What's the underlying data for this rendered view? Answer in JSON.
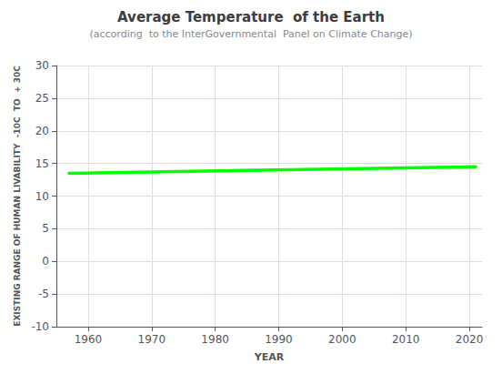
{
  "chart_data": {
    "type": "line",
    "title": "Average Temperature  of the Earth",
    "subtitle": "(according  to the InterGovernmental  Panel on Climate Change)",
    "xlabel": "YEAR",
    "ylabel": "EXISTING RANGE OF HUMAN LIVABILITY  -10C  TO  + 30C",
    "x": [
      1957,
      2021
    ],
    "values": [
      13.5,
      14.5
    ],
    "color": "#00ff00",
    "xlim": [
      1955,
      2022
    ],
    "xticks": [
      1960,
      1970,
      1980,
      1990,
      2000,
      2010,
      2020
    ],
    "ylim": [
      -10,
      30
    ],
    "yticks": [
      -10,
      -5,
      0,
      5,
      10,
      15,
      20,
      25,
      30
    ],
    "grid": true
  }
}
